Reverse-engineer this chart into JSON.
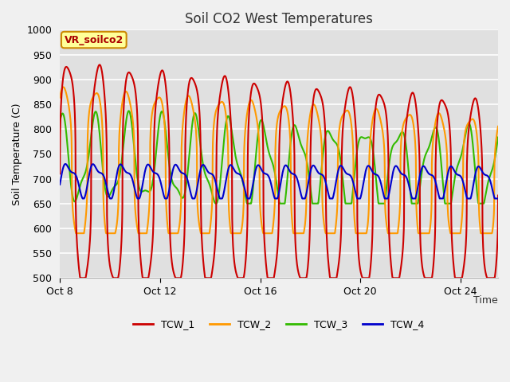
{
  "title": "Soil CO2 West Temperatures",
  "xlabel": "Time",
  "ylabel": "Soil Temperature (C)",
  "ylim": [
    500,
    1000
  ],
  "fig_facecolor": "#f0f0f0",
  "plot_bg_color": "#e0e0e0",
  "colors": {
    "TCW_1": "#cc0000",
    "TCW_2": "#ff9900",
    "TCW_3": "#33bb00",
    "TCW_4": "#0000cc"
  },
  "xtick_labels": [
    "Oct 8",
    "Oct 12",
    "Oct 16",
    "Oct 20",
    "Oct 24"
  ],
  "xtick_positions": [
    0,
    4,
    8,
    12,
    16
  ],
  "xlim": [
    0,
    17.5
  ],
  "yticks": [
    500,
    550,
    600,
    650,
    700,
    750,
    800,
    850,
    900,
    950,
    1000
  ],
  "vr_label": "VR_soilco2",
  "legend_entries": [
    "TCW_1",
    "TCW_2",
    "TCW_3",
    "TCW_4"
  ],
  "linewidth": 1.5
}
